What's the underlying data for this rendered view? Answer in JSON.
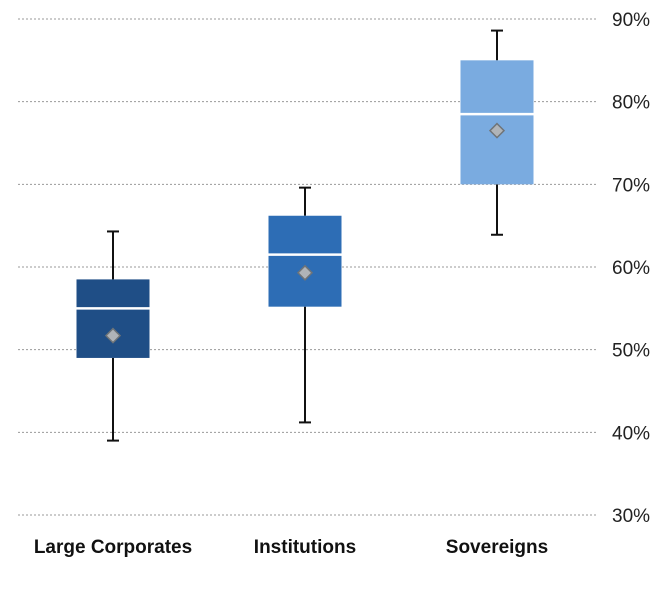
{
  "chart_data": {
    "type": "boxplot",
    "title": "",
    "xlabel": "",
    "ylabel": "",
    "ylim": [
      30,
      90
    ],
    "y_ticks": [
      90,
      80,
      70,
      60,
      50,
      40,
      30
    ],
    "y_tick_labels": [
      "90%",
      "80%",
      "70%",
      "60%",
      "50%",
      "40%",
      "30%"
    ],
    "y_axis_side": "right",
    "grid": true,
    "categories": [
      "Large Corporates",
      "Institutions",
      "Sovereigns"
    ],
    "boxes": [
      {
        "category": "Large Corporates",
        "min": 39,
        "q1": 49,
        "median": 55,
        "q3": 58.5,
        "max": 64.3,
        "mean": 51.7,
        "color": "#1f4e86"
      },
      {
        "category": "Institutions",
        "min": 41.2,
        "q1": 55.2,
        "median": 61.5,
        "q3": 66.2,
        "max": 69.6,
        "mean": 59.3,
        "color": "#2d6db5"
      },
      {
        "category": "Sovereigns",
        "min": 63.9,
        "q1": 70,
        "median": 78.5,
        "q3": 85,
        "max": 88.6,
        "mean": 76.5,
        "color": "#7aabe0"
      }
    ]
  }
}
